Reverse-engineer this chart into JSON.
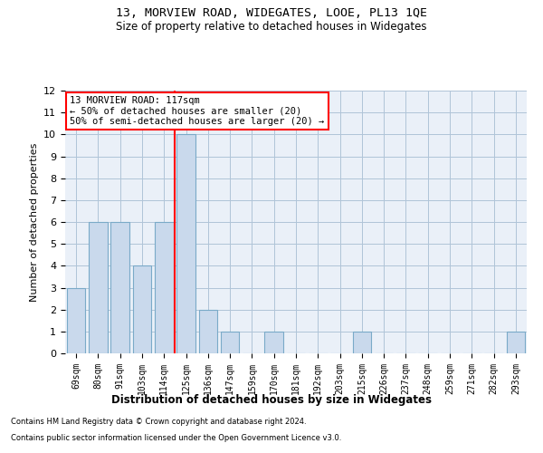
{
  "title": "13, MORVIEW ROAD, WIDEGATES, LOOE, PL13 1QE",
  "subtitle": "Size of property relative to detached houses in Widegates",
  "xlabel": "Distribution of detached houses by size in Widegates",
  "ylabel": "Number of detached properties",
  "categories": [
    "69sqm",
    "80sqm",
    "91sqm",
    "103sqm",
    "114sqm",
    "125sqm",
    "136sqm",
    "147sqm",
    "159sqm",
    "170sqm",
    "181sqm",
    "192sqm",
    "203sqm",
    "215sqm",
    "226sqm",
    "237sqm",
    "248sqm",
    "259sqm",
    "271sqm",
    "282sqm",
    "293sqm"
  ],
  "values": [
    3,
    6,
    6,
    4,
    6,
    10,
    2,
    1,
    0,
    1,
    0,
    0,
    0,
    1,
    0,
    0,
    0,
    0,
    0,
    0,
    1
  ],
  "bar_color": "#c9d9ec",
  "bar_edge_color": "#7aaac8",
  "grid_color": "#b0c4d8",
  "background_color": "#eaf0f8",
  "annotation_line1": "13 MORVIEW ROAD: 117sqm",
  "annotation_line2": "← 50% of detached houses are smaller (20)",
  "annotation_line3": "50% of semi-detached houses are larger (20) →",
  "annotation_box_color": "white",
  "annotation_box_edge": "red",
  "red_line_index": 4.5,
  "ylim": [
    0,
    12
  ],
  "yticks": [
    0,
    1,
    2,
    3,
    4,
    5,
    6,
    7,
    8,
    9,
    10,
    11,
    12
  ],
  "footer_line1": "Contains HM Land Registry data © Crown copyright and database right 2024.",
  "footer_line2": "Contains public sector information licensed under the Open Government Licence v3.0."
}
